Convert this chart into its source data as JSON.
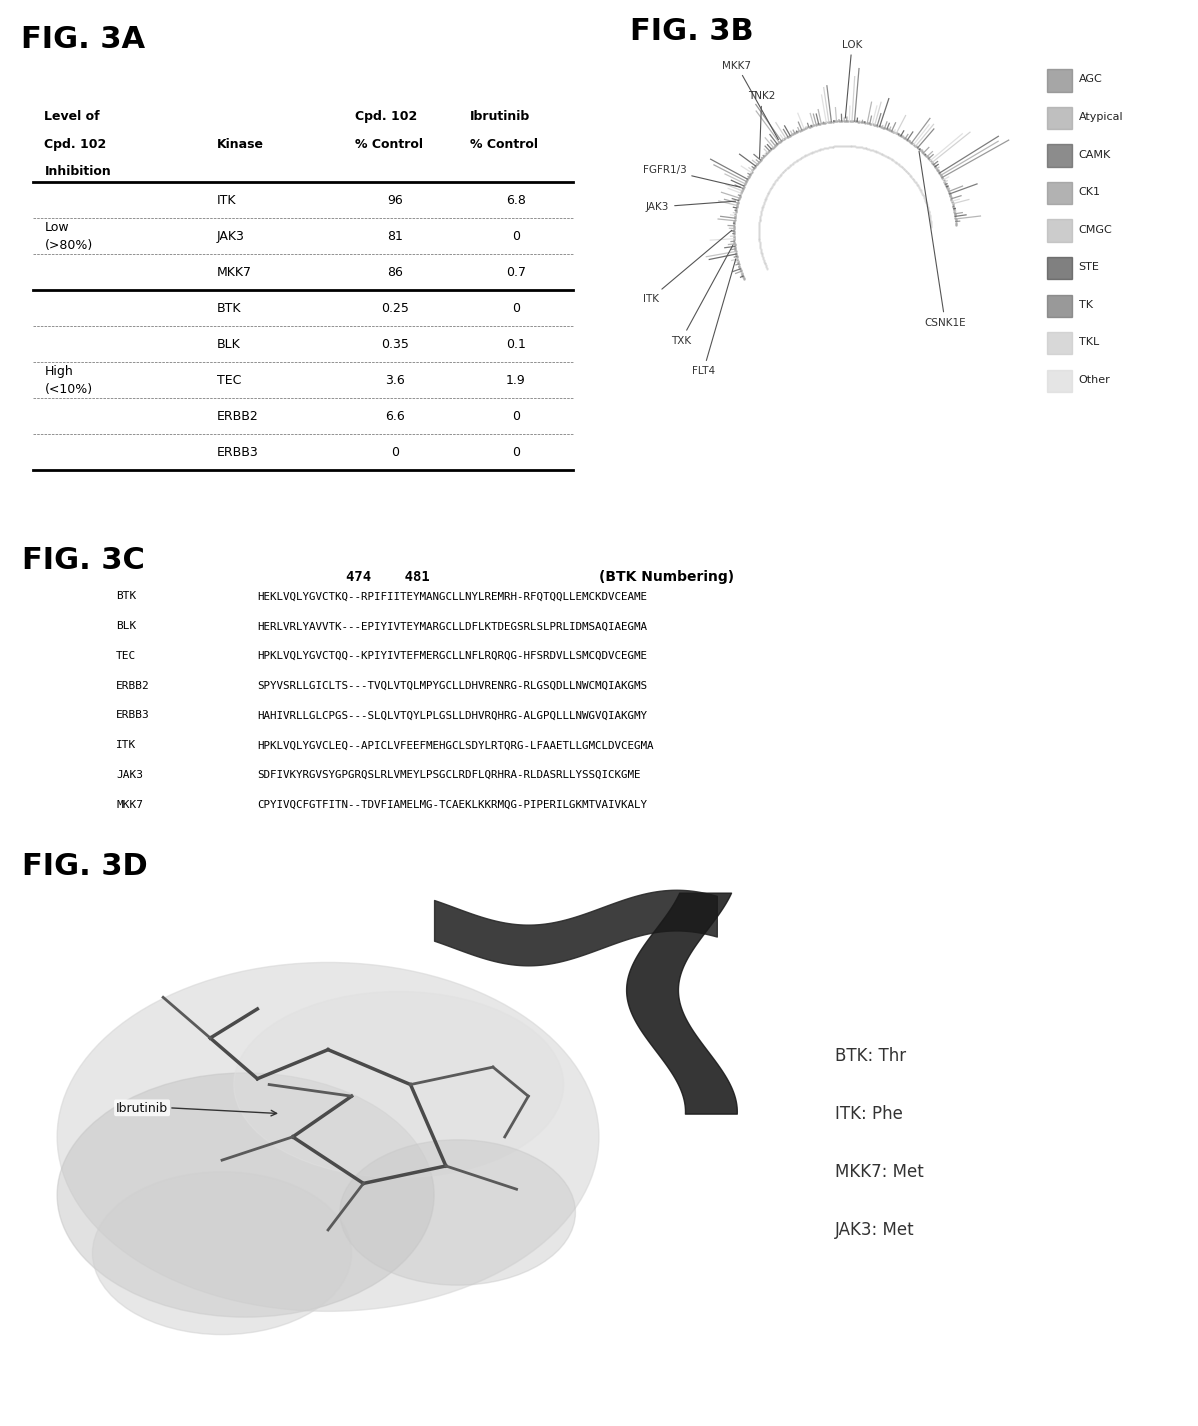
{
  "fig3a_title": "FIG. 3A",
  "fig3b_title": "FIG. 3B",
  "fig3c_title": "FIG. 3C",
  "fig3d_title": "FIG. 3D",
  "table_rows": [
    [
      "Low\n(>80%)",
      "ITK",
      "96",
      "6.8"
    ],
    [
      "",
      "JAK3",
      "81",
      "0"
    ],
    [
      "",
      "MKK7",
      "86",
      "0.7"
    ],
    [
      "High\n(<10%)",
      "BTK",
      "0.25",
      "0"
    ],
    [
      "",
      "BLK",
      "0.35",
      "0.1"
    ],
    [
      "",
      "TEC",
      "3.6",
      "1.9"
    ],
    [
      "",
      "ERBB2",
      "6.6",
      "0"
    ],
    [
      "",
      "ERBB3",
      "0",
      "0"
    ]
  ],
  "fig3c_sequences": [
    [
      "BTK",
      "HEKLVQLYGVCTKQ--RPIFIITEYMANGCLLNYLREMRH-RFQTQQLLEMCKDVCEAME"
    ],
    [
      "BLK",
      "HERLVRLYAVVTK---EPIYIVTEYMARGCLLDFLKTDEGSRLSLPRLIDMSAQIAEGMA"
    ],
    [
      "TEC",
      "HPKLVQLYGVCTQQ--KPIYIVTEFMERGCLLNFLRQRQG-HFSRDVLLSMCQDVCEGME"
    ],
    [
      "ERBB2",
      "SPYVSRLLGICLTS---TVQLVTQLMPYGCLLDHVRENRG-RLGSQDLLNWCMQIAKGMS"
    ],
    [
      "ERBB3",
      "HAHIVRLLGLCPGS---SLQLVTQYLPLGSLLDHVRQHRG-ALGPQLLLNWGVQIAKGMY"
    ],
    [
      "ITK",
      "HPKLVQLYGVCLEQ--APICLVFEEFMEHGCLSDYLRTQRG-LFAAETLLGMCLDVCEGMA"
    ],
    [
      "JAK3",
      "SDFIVKYRGVSYGPGRQSLRLVMEYLPSGCLRDFLQRHRA-RLDASRLLYSSQICKGME"
    ],
    [
      "MKK7",
      "CPYIVQCFGTFITN--TDVFIAMELMG-TCAEKLKKRMQG-PIPERILGKMTVAIVKALY"
    ]
  ],
  "fig3d_labels": [
    "BTK: Thr",
    "ITK: Phe",
    "MKK7: Met",
    "JAK3: Met"
  ],
  "legend_items": [
    "AGC",
    "Atypical",
    "CAMK",
    "CK1",
    "CMGC",
    "STE",
    "TK",
    "TKL",
    "Other"
  ],
  "bg_color": "#ffffff"
}
